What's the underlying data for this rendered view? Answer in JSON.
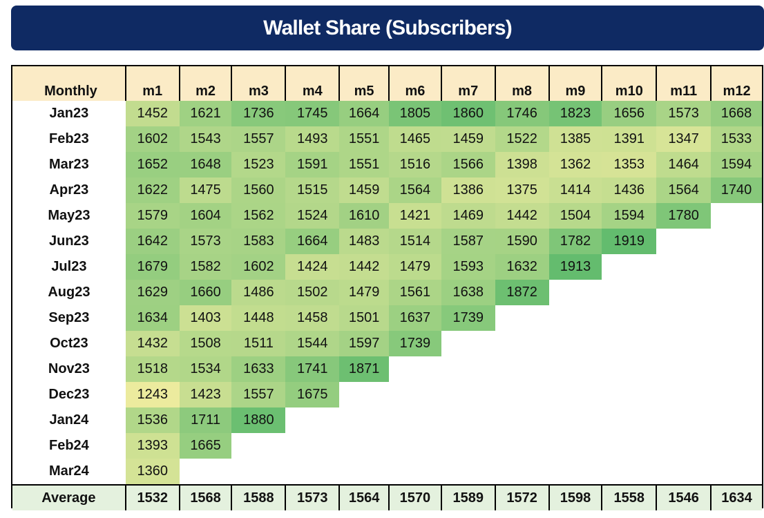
{
  "title": "Wallet Share (Subscribers)",
  "corner_label": "Monthly",
  "average_label": "Average",
  "columns": [
    "m1",
    "m2",
    "m3",
    "m4",
    "m5",
    "m6",
    "m7",
    "m8",
    "m9",
    "m10",
    "m11",
    "m12"
  ],
  "rows": [
    {
      "label": "Jan23",
      "values": [
        1452,
        1621,
        1736,
        1745,
        1664,
        1805,
        1860,
        1746,
        1823,
        1656,
        1573,
        1668
      ]
    },
    {
      "label": "Feb23",
      "values": [
        1602,
        1543,
        1557,
        1493,
        1551,
        1465,
        1459,
        1522,
        1385,
        1391,
        1347,
        1533
      ]
    },
    {
      "label": "Mar23",
      "values": [
        1652,
        1648,
        1523,
        1591,
        1551,
        1516,
        1566,
        1398,
        1362,
        1353,
        1464,
        1594
      ]
    },
    {
      "label": "Apr23",
      "values": [
        1622,
        1475,
        1560,
        1515,
        1459,
        1564,
        1386,
        1375,
        1414,
        1436,
        1564,
        1740
      ]
    },
    {
      "label": "May23",
      "values": [
        1579,
        1604,
        1562,
        1524,
        1610,
        1421,
        1469,
        1442,
        1504,
        1594,
        1780
      ]
    },
    {
      "label": "Jun23",
      "values": [
        1642,
        1573,
        1583,
        1664,
        1483,
        1514,
        1587,
        1590,
        1782,
        1919
      ]
    },
    {
      "label": "Jul23",
      "values": [
        1679,
        1582,
        1602,
        1424,
        1442,
        1479,
        1593,
        1632,
        1913
      ]
    },
    {
      "label": "Aug23",
      "values": [
        1629,
        1660,
        1486,
        1502,
        1479,
        1561,
        1638,
        1872
      ]
    },
    {
      "label": "Sep23",
      "values": [
        1634,
        1403,
        1448,
        1458,
        1501,
        1637,
        1739
      ]
    },
    {
      "label": "Oct23",
      "values": [
        1432,
        1508,
        1511,
        1544,
        1597,
        1739
      ]
    },
    {
      "label": "Nov23",
      "values": [
        1518,
        1534,
        1633,
        1741,
        1871
      ]
    },
    {
      "label": "Dec23",
      "values": [
        1243,
        1423,
        1557,
        1675
      ]
    },
    {
      "label": "Jan24",
      "values": [
        1536,
        1711,
        1880
      ]
    },
    {
      "label": "Feb24",
      "values": [
        1393,
        1665
      ]
    },
    {
      "label": "Mar24",
      "values": [
        1360
      ]
    }
  ],
  "averages": [
    1532,
    1568,
    1588,
    1573,
    1564,
    1570,
    1589,
    1572,
    1598,
    1558,
    1546,
    1634
  ],
  "colors": {
    "banner": "#0f2a63",
    "header_bg": "#fbebc6",
    "average_bg": "#e4f1de",
    "scale_low": "#eceb9e",
    "scale_high": "#63bc6e"
  }
}
